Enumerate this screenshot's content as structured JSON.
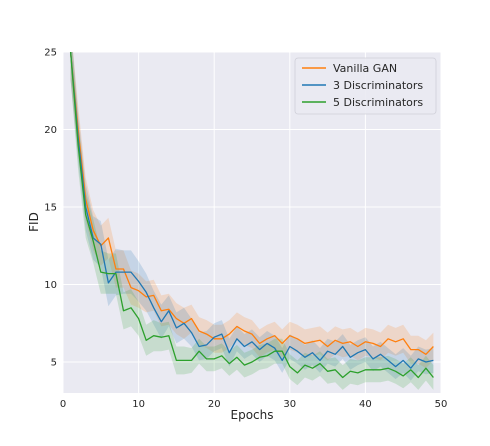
{
  "chart_data": {
    "type": "line",
    "title": "",
    "xlabel": "Epochs",
    "ylabel": "FID",
    "xlim": [
      0,
      50
    ],
    "ylim": [
      3,
      25
    ],
    "xticks": [
      0,
      10,
      20,
      30,
      40,
      50
    ],
    "yticks": [
      5,
      10,
      15,
      20,
      25
    ],
    "grid": true,
    "legend_position": "top-right",
    "series": [
      {
        "name": "Vanilla GAN",
        "color": "#ff7f0e",
        "x": [
          1,
          2,
          3,
          4,
          5,
          6,
          7,
          8,
          9,
          10,
          11,
          12,
          13,
          14,
          15,
          16,
          17,
          18,
          19,
          20,
          21,
          22,
          23,
          24,
          25,
          26,
          27,
          28,
          29,
          30,
          31,
          32,
          33,
          34,
          35,
          36,
          37,
          38,
          39,
          40,
          41,
          42,
          43,
          44,
          45,
          46,
          47,
          48,
          49
        ],
        "values": [
          25,
          20,
          15.5,
          13.5,
          12.5,
          13,
          11,
          11,
          9.8,
          9.6,
          9.2,
          9.3,
          8.3,
          8.4,
          7.8,
          7.5,
          7.8,
          7,
          6.8,
          6.5,
          6.5,
          6.8,
          7.3,
          7,
          6.8,
          6.2,
          6.5,
          6.7,
          6.2,
          6.7,
          6.5,
          6.2,
          6.3,
          6.4,
          6,
          6.4,
          6.2,
          6.3,
          6,
          6.3,
          6.2,
          6,
          6.5,
          6.3,
          6.5,
          5.8,
          5.8,
          5.5,
          6
        ],
        "band": [
          1.8,
          1.6,
          1.4,
          1.3,
          1.3,
          1.3,
          1.2,
          1.2,
          1.1,
          1.1,
          1,
          1,
          1,
          1,
          1,
          1,
          0.9,
          0.9,
          0.9,
          0.9,
          0.9,
          0.9,
          0.9,
          0.9,
          0.9,
          0.9,
          0.9,
          0.9,
          0.9,
          0.9,
          0.9,
          0.9,
          0.9,
          0.9,
          0.9,
          0.9,
          0.9,
          0.9,
          0.9,
          0.9,
          0.9,
          0.9,
          0.9,
          0.9,
          0.9,
          0.9,
          0.9,
          0.9,
          0.9
        ]
      },
      {
        "name": "3 Discriminators",
        "color": "#1f77b4",
        "x": [
          1,
          2,
          3,
          4,
          5,
          6,
          7,
          8,
          9,
          10,
          11,
          12,
          13,
          14,
          15,
          16,
          17,
          18,
          19,
          20,
          21,
          22,
          23,
          24,
          25,
          26,
          27,
          28,
          29,
          30,
          31,
          32,
          33,
          34,
          35,
          36,
          37,
          38,
          39,
          40,
          41,
          42,
          43,
          44,
          45,
          46,
          47,
          48,
          49
        ],
        "values": [
          25,
          19.5,
          15,
          13,
          12.6,
          10.1,
          10.8,
          10.8,
          10.8,
          10.2,
          9.5,
          8.5,
          7.6,
          8.3,
          7.2,
          7.5,
          6.9,
          6,
          6.1,
          6.6,
          6.8,
          5.6,
          6.5,
          6,
          6.3,
          5.8,
          6.2,
          5.9,
          5.1,
          6,
          5.7,
          5.3,
          5.6,
          5.1,
          5.7,
          5.5,
          6,
          5.3,
          5.6,
          5.8,
          5.2,
          5.5,
          5.1,
          4.7,
          5.1,
          4.6,
          5.2,
          5,
          5.1
        ],
        "band": [
          1.8,
          1.6,
          1.5,
          1.4,
          1.5,
          1.5,
          1.5,
          1.4,
          1.4,
          1.3,
          1.2,
          1.1,
          1.1,
          1,
          1,
          1,
          0.9,
          0.9,
          0.9,
          0.9,
          0.9,
          0.9,
          0.8,
          0.8,
          0.8,
          0.8,
          0.8,
          0.8,
          0.8,
          0.8,
          0.8,
          0.8,
          0.8,
          0.8,
          0.8,
          0.8,
          0.8,
          0.8,
          0.8,
          0.8,
          0.8,
          0.8,
          0.8,
          0.8,
          0.8,
          0.8,
          0.8,
          0.8,
          0.8
        ]
      },
      {
        "name": "5 Discriminators",
        "color": "#2ca02c",
        "x": [
          1,
          2,
          3,
          4,
          5,
          6,
          7,
          8,
          9,
          10,
          11,
          12,
          13,
          14,
          15,
          16,
          17,
          18,
          19,
          20,
          21,
          22,
          23,
          24,
          25,
          26,
          27,
          28,
          29,
          30,
          31,
          32,
          33,
          34,
          35,
          36,
          37,
          38,
          39,
          40,
          41,
          42,
          43,
          44,
          45,
          46,
          47,
          48,
          49
        ],
        "values": [
          25,
          19,
          14.5,
          12.8,
          10.8,
          10.7,
          10.7,
          8.3,
          8.5,
          7.8,
          6.4,
          6.7,
          6.6,
          6.7,
          5.1,
          5.1,
          5.1,
          5.7,
          5.2,
          5.2,
          5.4,
          4.9,
          5.3,
          4.8,
          5,
          5.3,
          5.4,
          5.7,
          5.7,
          4.7,
          4.3,
          4.8,
          4.6,
          4.9,
          4.4,
          4.5,
          4,
          4.4,
          4.3,
          4.5,
          4.5,
          4.5,
          4.6,
          4.4,
          4.1,
          4.5,
          4,
          4.6,
          4
        ],
        "band": [
          1.8,
          1.6,
          1.5,
          1.4,
          1.4,
          1.3,
          1.3,
          1.2,
          1.2,
          1.1,
          1,
          1,
          0.9,
          0.9,
          0.9,
          0.9,
          0.8,
          0.8,
          0.8,
          0.8,
          0.8,
          0.8,
          0.8,
          0.8,
          0.8,
          0.8,
          0.8,
          0.8,
          0.8,
          0.8,
          0.8,
          0.8,
          0.8,
          0.8,
          0.8,
          0.8,
          0.8,
          0.8,
          0.8,
          0.8,
          0.8,
          0.8,
          0.8,
          0.8,
          0.8,
          0.8,
          0.8,
          0.8,
          0.8
        ]
      }
    ]
  }
}
